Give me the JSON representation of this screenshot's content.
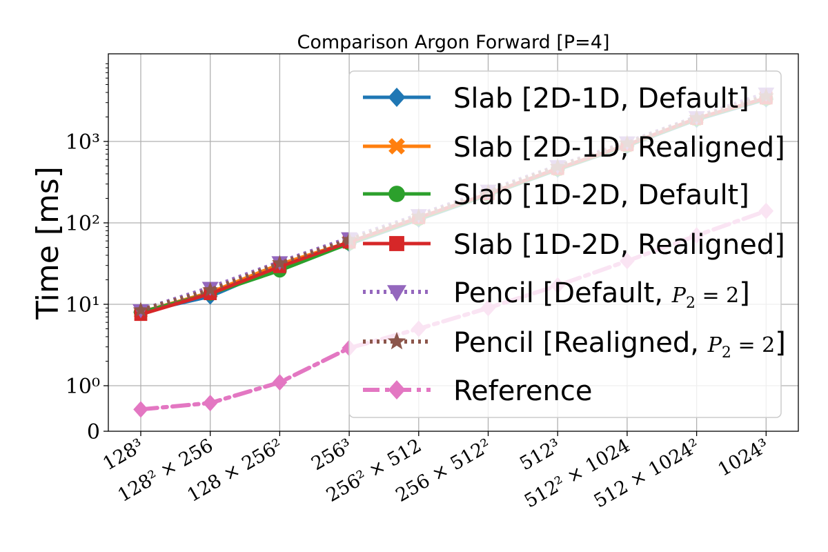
{
  "chart_data": {
    "type": "line",
    "title": "Comparison Argon Forward [P=4]",
    "xlabel": "",
    "ylabel": "Time [ms]",
    "yscale": "symlog",
    "grid": true,
    "legend_position": "right",
    "categories": [
      "128³",
      "128² × 256",
      "128 × 256²",
      "256³",
      "256² × 512",
      "256 × 512²",
      "512³",
      "512² × 1024",
      "512 × 1024²",
      "1024³"
    ],
    "y_ticks": [
      {
        "value": 0,
        "label": "0"
      },
      {
        "value": 1,
        "label": "10⁰"
      },
      {
        "value": 10,
        "label": "10¹"
      },
      {
        "value": 100,
        "label": "10²"
      },
      {
        "value": 1000,
        "label": "10³"
      }
    ],
    "series": [
      {
        "name": "Slab [2D-1D, Default]",
        "color": "#1f77b4",
        "marker": "diamond",
        "dash": "solid",
        "values": [
          8,
          12.5,
          29,
          55,
          110,
          220,
          450,
          880,
          1850,
          3300
        ]
      },
      {
        "name": "Slab [2D-1D, Realigned]",
        "color": "#ff7f0e",
        "marker": "x",
        "dash": "solid",
        "values": [
          8,
          14,
          31,
          58,
          115,
          225,
          460,
          900,
          1900,
          3400
        ]
      },
      {
        "name": "Slab [1D-2D, Default]",
        "color": "#2ca02c",
        "marker": "circle",
        "dash": "solid",
        "values": [
          8,
          13.5,
          26,
          56,
          112,
          222,
          455,
          890,
          1880,
          3350
        ]
      },
      {
        "name": "Slab [1D-2D, Realigned]",
        "color": "#d62728",
        "marker": "square",
        "dash": "solid",
        "values": [
          7.5,
          13.5,
          29,
          58,
          116,
          228,
          465,
          910,
          1920,
          3420
        ]
      },
      {
        "name": "Pencil [Default, P_2 = 2]",
        "color": "#9467bd",
        "marker": "triangle-down",
        "dash": "dotted",
        "values": [
          8.5,
          16,
          33,
          65,
          125,
          250,
          500,
          980,
          2000,
          3900
        ]
      },
      {
        "name": "Pencil [Realigned, P_2 = 2]",
        "color": "#8c564b",
        "marker": "star",
        "dash": "dotted",
        "values": [
          8.5,
          15,
          32,
          62,
          120,
          240,
          490,
          950,
          1950,
          3600
        ]
      },
      {
        "name": "Reference",
        "color": "#e377c2",
        "marker": "diamond",
        "dash": "dashdot",
        "values": [
          0.48,
          0.62,
          1.1,
          2.9,
          5.0,
          9.0,
          17,
          34,
          70,
          140
        ]
      }
    ],
    "legend_labels": [
      {
        "prefix": "Slab [2D-1D, Default]",
        "math": "",
        "suffix": ""
      },
      {
        "prefix": "Slab [2D-1D, Realigned]",
        "math": "",
        "suffix": ""
      },
      {
        "prefix": "Slab [1D-2D, Default]",
        "math": "",
        "suffix": ""
      },
      {
        "prefix": "Slab [1D-2D, Realigned]",
        "math": "",
        "suffix": ""
      },
      {
        "prefix": "Pencil [Default, ",
        "math_base": "P",
        "math_sub": "2",
        "math_rest": " = 2",
        "suffix": "]"
      },
      {
        "prefix": "Pencil [Realigned, ",
        "math_base": "P",
        "math_sub": "2",
        "math_rest": " = 2",
        "suffix": "]"
      },
      {
        "prefix": "Reference",
        "math": "",
        "suffix": ""
      }
    ]
  }
}
